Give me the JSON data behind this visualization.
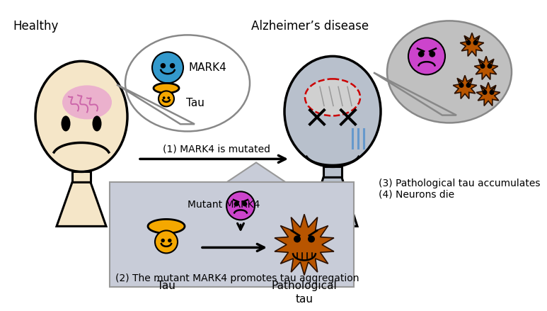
{
  "background_color": "#ffffff",
  "healthy_label": "Healthy",
  "alzheimer_label": "Alzheimer’s disease",
  "step1_label": "(1) MARK4 is mutated",
  "step2_label": "(2) The mutant MARK4 promotes tau aggregation",
  "step3_label": "(3) Pathological tau accumulates",
  "step4_label": "(4) Neurons die",
  "mark4_label": "MARK4",
  "tau_label": "Tau",
  "mutant_mark4_label": "Mutant MARK4",
  "patho_tau_label": "Pathological\ntau",
  "healthy_head_color": "#f5e6c8",
  "healthy_head_outline": "#1a1a1a",
  "sick_head_color": "#b8c0cc",
  "sick_head_outline": "#1a1a1a",
  "speech_bubble_healthy_color": "#ffffff",
  "speech_bubble_sick_color": "#c0c0c0",
  "box_color": "#c8ccd8",
  "mark4_circle_color": "#3399cc",
  "tau_drop_color": "#f5a800",
  "mutant_mark4_color": "#cc44cc",
  "patho_tau_color": "#b85500",
  "arrow_color": "#1a1a1a",
  "body_color": "#f5e6c8",
  "sick_body_color": "#b8c0cc",
  "brain_pink_color": "#e8a0d0",
  "brain_gray_color": "#d0d0d0",
  "brain_red_outline": "#cc0000",
  "tear_color": "#6699cc"
}
